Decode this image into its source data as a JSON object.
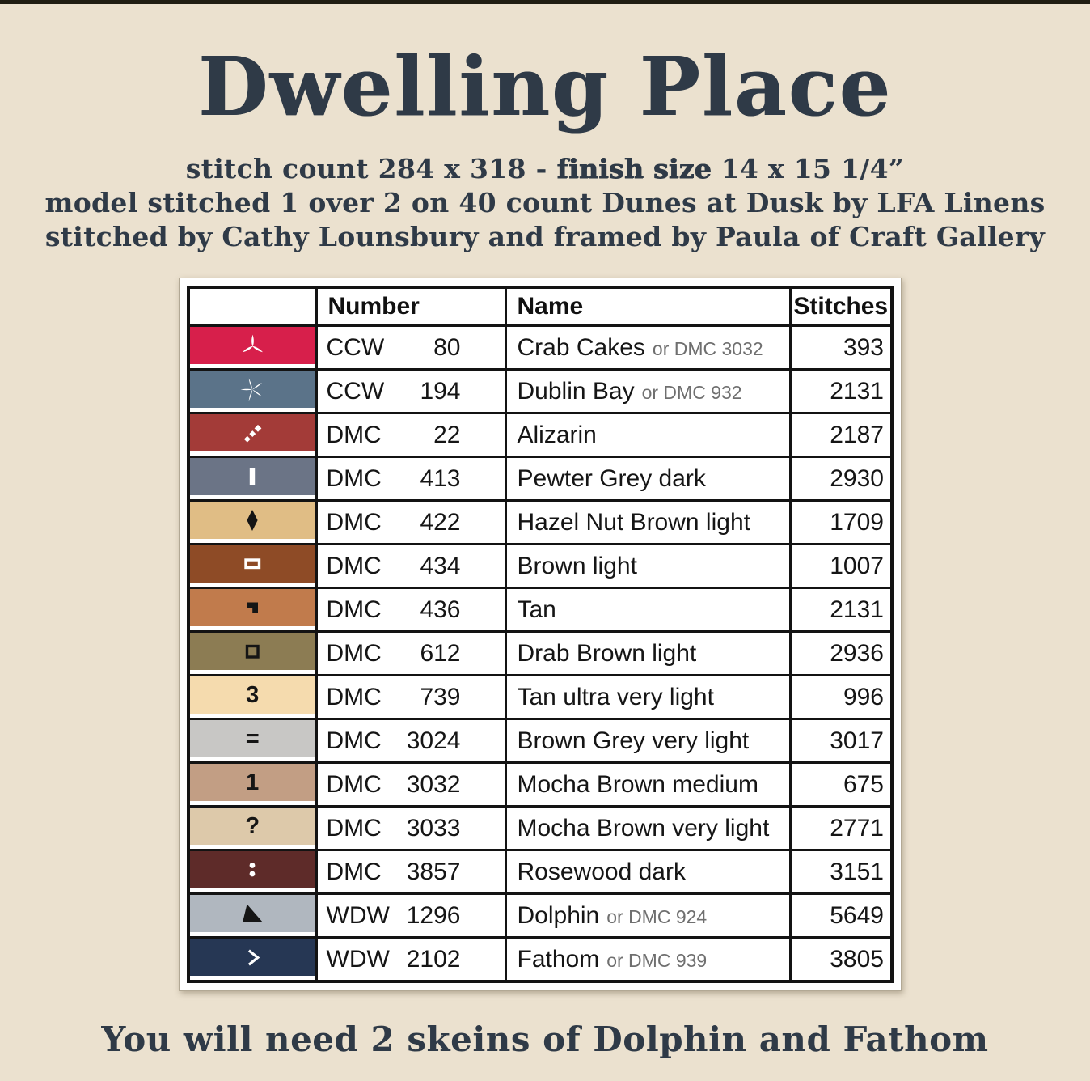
{
  "page": {
    "background": "#ebe1cf",
    "top_strip_color": "#201d13",
    "text_color": "#2f3a47"
  },
  "header": {
    "title": "Dwelling Place",
    "subtitle": {
      "line1_normal1": "stitch count 284 x 318 - ",
      "line1_bold": "finish size",
      "line1_normal2": " 14 x 15 1/4”",
      "line2": "model stitched 1 over 2 on 40 count Dunes at Dusk by LFA Linens",
      "line3": "stitched by Cathy Lounsbury and framed by Paula of Craft Gallery"
    }
  },
  "table": {
    "columns": [
      "Number",
      "Name",
      "Stitches"
    ],
    "rows": [
      {
        "symbol": "three-point-star",
        "symbol_color": "#ffffff",
        "swatch_color": "#d71f4b",
        "brand": "CCW",
        "number": "80",
        "name": "Crab Cakes",
        "alt": "or DMC 3032",
        "stitches": "393"
      },
      {
        "symbol": "five-point-star",
        "symbol_color": "#ffffff",
        "swatch_color": "#5b7389",
        "brand": "CCW",
        "number": "194",
        "name": "Dublin Bay",
        "alt": "or DMC 932",
        "stitches": "2131"
      },
      {
        "symbol": "diagonal-dots",
        "symbol_color": "#ffffff",
        "swatch_color": "#a33b38",
        "brand": "DMC",
        "number": "22",
        "name": "Alizarin",
        "alt": "",
        "stitches": "2187"
      },
      {
        "symbol": "vertical-bar",
        "symbol_color": "#ffffff",
        "swatch_color": "#6b7486",
        "brand": "DMC",
        "number": "413",
        "name": "Pewter Grey dark",
        "alt": "",
        "stitches": "2930"
      },
      {
        "symbol": "diamond",
        "symbol_color": "#151515",
        "swatch_color": "#e0bd85",
        "brand": "DMC",
        "number": "422",
        "name": "Hazel Nut Brown light",
        "alt": "",
        "stitches": "1709"
      },
      {
        "symbol": "rect-outline",
        "symbol_color": "#ffffff",
        "swatch_color": "#8e4b26",
        "brand": "DMC",
        "number": "434",
        "name": "Brown light",
        "alt": "",
        "stitches": "1007"
      },
      {
        "symbol": "flag",
        "symbol_color": "#151515",
        "swatch_color": "#c17b4c",
        "brand": "DMC",
        "number": "436",
        "name": "Tan",
        "alt": "",
        "stitches": "2131"
      },
      {
        "symbol": "square-outline",
        "symbol_color": "#151515",
        "swatch_color": "#8c7c53",
        "brand": "DMC",
        "number": "612",
        "name": "Drab Brown light",
        "alt": "",
        "stitches": "2936"
      },
      {
        "symbol": "glyph",
        "glyph": "3",
        "symbol_color": "#151515",
        "swatch_color": "#f5dbae",
        "brand": "DMC",
        "number": "739",
        "name": "Tan ultra very light",
        "alt": "",
        "stitches": "996"
      },
      {
        "symbol": "glyph",
        "glyph": "=",
        "symbol_color": "#151515",
        "swatch_color": "#c8c7c5",
        "brand": "DMC",
        "number": "3024",
        "name": "Brown Grey very light",
        "alt": "",
        "stitches": "3017"
      },
      {
        "symbol": "glyph",
        "glyph": "1",
        "symbol_color": "#151515",
        "swatch_color": "#c29e84",
        "brand": "DMC",
        "number": "3032",
        "name": "Mocha Brown medium",
        "alt": "",
        "stitches": "675"
      },
      {
        "symbol": "glyph",
        "glyph": "?",
        "symbol_color": "#151515",
        "swatch_color": "#ddc9aa",
        "brand": "DMC",
        "number": "3033",
        "name": "Mocha Brown very light",
        "alt": "",
        "stitches": "2771"
      },
      {
        "symbol": "colon",
        "symbol_color": "#ffffff",
        "swatch_color": "#5e2b29",
        "brand": "DMC",
        "number": "3857",
        "name": "Rosewood dark",
        "alt": "",
        "stitches": "3151"
      },
      {
        "symbol": "triangle",
        "symbol_color": "#151515",
        "swatch_color": "#b0b7bf",
        "brand": "WDW",
        "number": "1296",
        "name": "Dolphin",
        "alt": "or DMC 924",
        "stitches": "5649"
      },
      {
        "symbol": "chevron-right",
        "symbol_color": "#ffffff",
        "swatch_color": "#263754",
        "brand": "WDW",
        "number": "2102",
        "name": "Fathom",
        "alt": "or DMC 939",
        "stitches": "3805"
      }
    ]
  },
  "footer": {
    "note": "You will need 2 skeins of Dolphin and Fathom"
  }
}
